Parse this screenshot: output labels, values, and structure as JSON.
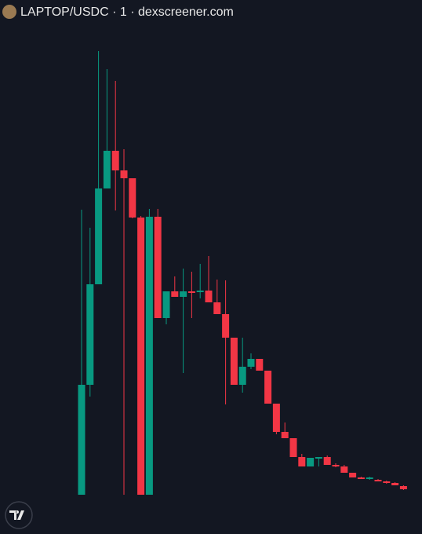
{
  "chart_data": {
    "type": "candlestick",
    "title": "LAPTOP/USDC · 1 · dexscreener.com",
    "up_color": "#089981",
    "down_color": "#f23645",
    "ylim": [
      0,
      680
    ],
    "open": [
      50,
      190,
      318,
      440,
      488,
      463,
      453,
      403,
      50,
      404,
      275,
      309,
      302,
      309,
      308,
      310,
      295,
      280,
      250,
      190,
      213,
      223,
      208,
      166,
      130,
      122,
      98,
      86,
      96,
      98,
      88,
      86,
      78,
      72,
      70,
      69,
      67,
      65,
      61
    ],
    "high": [
      413,
      390,
      615,
      592,
      577,
      490,
      453,
      405,
      414,
      414,
      309,
      328,
      338,
      334,
      344,
      354,
      324,
      323,
      250,
      250,
      230,
      223,
      208,
      166,
      142,
      122,
      102,
      97,
      98,
      100,
      90,
      88,
      78,
      73,
      73,
      70,
      68,
      66,
      62
    ],
    "low": [
      50,
      175,
      318,
      440,
      412,
      50,
      402,
      50,
      50,
      275,
      267,
      302,
      205,
      275,
      300,
      295,
      280,
      165,
      190,
      180,
      210,
      208,
      166,
      127,
      122,
      98,
      86,
      86,
      86,
      88,
      85,
      78,
      72,
      70,
      69,
      67,
      64,
      62,
      56
    ],
    "close": [
      190,
      318,
      440,
      488,
      463,
      453,
      403,
      50,
      404,
      275,
      309,
      302,
      309,
      307,
      310,
      295,
      280,
      250,
      190,
      213,
      223,
      208,
      166,
      130,
      122,
      98,
      86,
      97,
      98,
      88,
      86,
      78,
      72,
      70,
      72,
      67,
      65,
      62,
      57
    ]
  }
}
